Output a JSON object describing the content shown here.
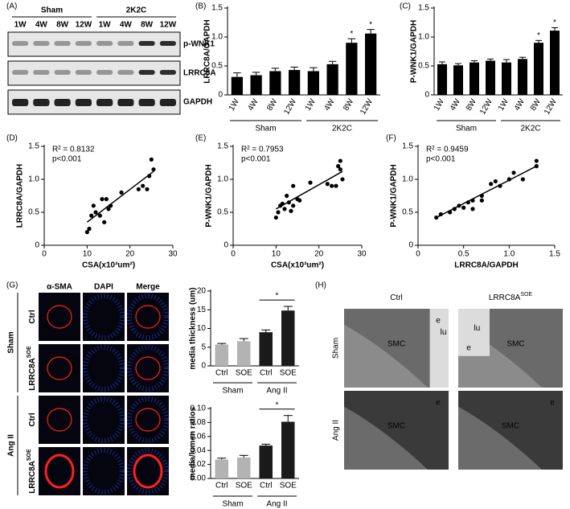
{
  "panel_labels": [
    "(A)",
    "(B)",
    "(C)",
    "(D)",
    "(E)",
    "(F)",
    "(G)",
    "(H)"
  ],
  "blot": {
    "groups": [
      "Sham",
      "2K2C"
    ],
    "lanes": [
      "1W",
      "4W",
      "8W",
      "12W",
      "1W",
      "4W",
      "8W",
      "12W"
    ],
    "rows": [
      "p-WNK1",
      "LRRC8A",
      "GAPDH"
    ]
  },
  "chart_data": [
    {
      "type": "bar",
      "ylabel": "LRRC8A/GAPDH",
      "categories": [
        "1W",
        "4W",
        "8W",
        "12W",
        "1W",
        "4W",
        "8W",
        "12W"
      ],
      "group_labels": [
        "Sham",
        "2K2C"
      ],
      "series": [
        {
          "color": "#000000",
          "values": [
            0.31,
            0.34,
            0.41,
            0.43,
            0.41,
            0.53,
            0.9,
            1.06
          ],
          "errors": [
            0.07,
            0.05,
            0.05,
            0.05,
            0.06,
            0.05,
            0.07,
            0.07
          ]
        }
      ],
      "significance": [
        null,
        null,
        null,
        null,
        null,
        null,
        "*",
        "*"
      ],
      "ylim": [
        0,
        1.5
      ],
      "yticks": [
        0,
        0.5,
        {
          "value": 1,
          "label": "1.0"
        },
        1.5
      ]
    },
    {
      "type": "bar",
      "ylabel": "P-WNK1/GAPDH",
      "categories": [
        "1W",
        "4W",
        "8W",
        "12W",
        "1W",
        "4W",
        "8W",
        "12W"
      ],
      "group_labels": [
        "Sham",
        "2K2C"
      ],
      "series": [
        {
          "color": "#000000",
          "values": [
            0.53,
            0.51,
            0.56,
            0.59,
            0.56,
            0.62,
            0.9,
            1.11
          ],
          "errors": [
            0.04,
            0.03,
            0.03,
            0.03,
            0.05,
            0.03,
            0.04,
            0.05
          ]
        }
      ],
      "significance": [
        null,
        null,
        null,
        null,
        null,
        null,
        "*",
        "*"
      ],
      "ylim": [
        0,
        1.5
      ],
      "yticks": [
        0,
        0.5,
        {
          "value": 1,
          "label": "1.0"
        },
        1.5
      ]
    },
    {
      "type": "scatter",
      "xlabel": "CSA(x10³um²)",
      "ylabel": "LRRC8A/GAPDH",
      "annotations": [
        "R² = 0.8132",
        "p<0.001"
      ],
      "color": "#000000",
      "x": [
        10,
        10.5,
        11,
        11.5,
        12,
        13,
        13.5,
        14,
        14.5,
        15,
        15.5,
        18,
        22,
        23,
        24,
        24.5,
        25,
        25.5
      ],
      "y": [
        0.2,
        0.25,
        0.45,
        0.6,
        0.5,
        0.45,
        0.7,
        0.35,
        0.7,
        0.55,
        0.6,
        0.8,
        0.85,
        0.9,
        0.85,
        1.05,
        1.3,
        1.15
      ],
      "trendline": {
        "x": [
          10,
          25.5
        ],
        "y": [
          0.35,
          1.12
        ]
      },
      "xlim": [
        0,
        30
      ],
      "xticks": [
        0,
        10,
        20,
        30
      ],
      "ylim": [
        0,
        1.5
      ],
      "yticks": [
        0,
        0.5,
        {
          "value": 1,
          "label": "1.0"
        },
        1.5
      ]
    },
    {
      "type": "scatter",
      "xlabel": "CSA(x10³um²)",
      "ylabel": "P-WNK1/GAPDH",
      "annotations": [
        "R² = 0.7953",
        "p<0.001"
      ],
      "color": "#000000",
      "x": [
        10,
        10.5,
        11,
        11.5,
        12,
        12.5,
        13,
        13.5,
        14,
        14,
        15,
        15.5,
        18,
        22,
        23,
        24,
        24.5,
        25,
        25.5,
        25
      ],
      "y": [
        0.42,
        0.5,
        0.6,
        0.63,
        0.55,
        0.75,
        0.65,
        0.52,
        0.9,
        0.6,
        0.7,
        0.68,
        0.95,
        0.93,
        0.9,
        0.9,
        1.2,
        1.28,
        1.0,
        1.15
      ],
      "trendline": {
        "x": [
          10,
          25.5
        ],
        "y": [
          0.55,
          1.12
        ]
      },
      "xlim": [
        0,
        30
      ],
      "xticks": [
        0,
        10,
        20,
        30
      ],
      "ylim": [
        0,
        1.5
      ],
      "yticks": [
        0,
        0.5,
        {
          "value": 1,
          "label": "1.0"
        },
        1.5
      ]
    },
    {
      "type": "scatter",
      "xlabel": "LRRC8A/GAPDH",
      "ylabel": "P-WNK1/GAPDH",
      "annotations": [
        "R² = 0.9459",
        "p<0.001"
      ],
      "color": "#000000",
      "x": [
        0.2,
        0.25,
        0.35,
        0.4,
        0.45,
        0.5,
        0.55,
        0.6,
        0.6,
        0.7,
        0.7,
        0.8,
        0.85,
        0.9,
        1.0,
        1.05,
        1.15,
        1.3,
        1.3
      ],
      "y": [
        0.42,
        0.47,
        0.5,
        0.55,
        0.6,
        0.57,
        0.65,
        0.55,
        0.68,
        0.68,
        0.75,
        0.93,
        0.97,
        0.9,
        1.0,
        1.1,
        1.0,
        1.2,
        1.28
      ],
      "trendline": {
        "x": [
          0.2,
          1.3
        ],
        "y": [
          0.42,
          1.2
        ]
      },
      "xlim": [
        0,
        1.5
      ],
      "xticks": [
        0,
        0.5,
        {
          "value": 1,
          "label": "1.0"
        },
        1.5
      ],
      "ylim": [
        0,
        1.5
      ],
      "yticks": [
        0,
        0.5,
        {
          "value": 1,
          "label": "1.0"
        },
        1.5
      ]
    },
    {
      "type": "bar",
      "ylabel": "media thickness (um)",
      "categories": [
        "Ctrl",
        "SOE",
        "Ctrl",
        "SOE"
      ],
      "group_labels": [
        "Sham",
        "Ang II"
      ],
      "series": [
        {
          "colors": [
            "#b3b3b3",
            "#b3b3b3",
            "#1a1a1a",
            "#1a1a1a"
          ],
          "values": [
            5.7,
            6.6,
            9.0,
            14.8
          ],
          "errors": [
            0.3,
            0.7,
            0.6,
            1.1
          ]
        }
      ],
      "significance": [
        null,
        null,
        null,
        "*"
      ],
      "significance_style": "bracket",
      "ylim": [
        0,
        20
      ],
      "yticks": [
        0,
        5,
        10,
        15,
        20
      ]
    },
    {
      "type": "bar",
      "ylabel": "media/lumen ratios",
      "categories": [
        "Ctrl",
        "SOE",
        "Ctrl",
        "SOE"
      ],
      "group_labels": [
        "Sham",
        "Ang II"
      ],
      "series": [
        {
          "colors": [
            "#b3b3b3",
            "#b3b3b3",
            "#1a1a1a",
            "#1a1a1a"
          ],
          "values": [
            0.027,
            0.03,
            0.047,
            0.081
          ],
          "errors": [
            0.002,
            0.003,
            0.002,
            0.009
          ]
        }
      ],
      "significance": [
        null,
        null,
        null,
        "*"
      ],
      "significance_style": "bracket",
      "ylim": [
        0,
        0.1
      ],
      "yticks": [
        {
          "value": 0,
          "label": "0.00"
        },
        {
          "value": 0.02,
          "label": "0.02"
        },
        {
          "value": 0.04,
          "label": "0.04"
        },
        {
          "value": 0.06,
          "label": "0.06"
        },
        {
          "value": 0.08,
          "label": "0.08"
        },
        {
          "value": 0.1,
          "label": "0.10"
        }
      ]
    }
  ],
  "microscopy": {
    "columns": [
      "α-SMA",
      "DAPI",
      "Merge"
    ],
    "groups": [
      {
        "label": "Sham",
        "rows": [
          {
            "text": "Ctrl"
          },
          {
            "text": "LRRC8A",
            "sup": "SOE"
          }
        ]
      },
      {
        "label": "Ang II",
        "rows": [
          {
            "text": "Ctrl"
          },
          {
            "text": "LRRC8A",
            "sup": "SOE"
          }
        ]
      }
    ]
  },
  "em": {
    "columns": [
      {
        "text": "Ctrl"
      },
      {
        "text": "LRRC8A",
        "sup": "SOE"
      }
    ],
    "rows": [
      "Sham",
      "Ang II"
    ],
    "image_labels": [
      [
        "SMC",
        "e",
        "lu"
      ],
      [
        "lu",
        "SMC",
        "e"
      ],
      [
        "SMC",
        "e"
      ],
      [
        "SMC",
        "e"
      ]
    ]
  }
}
